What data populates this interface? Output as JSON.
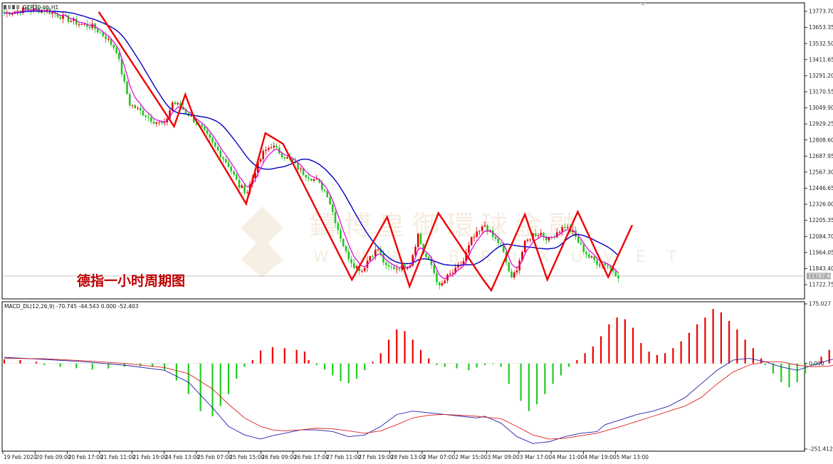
{
  "symbol_label": "GER30-bb,H1",
  "macd_header": "MACD_DL(12,26,9) -70.745 -44.543 0.000 -52.403",
  "annotation": "德指一小时周期图",
  "watermark": {
    "cn": "鑄博皇御環球金融",
    "en": "WWW.BRIXUVET"
  },
  "colors": {
    "bull": "#e00000",
    "bear": "#22c522",
    "ma_fast": "#e000e0",
    "ma_slow": "#0000c0",
    "zigzag": "#ee0000",
    "macd_dif": "#2222aa",
    "macd_dea": "#dd2222",
    "hist_pos": "#ee0000",
    "hist_neg": "#22cc22"
  },
  "chart_data": {
    "type": "candlestick",
    "price_axis": {
      "ticks": [
        "13773.70",
        "13653.35",
        "13532.50",
        "13411.65",
        "13291.20",
        "13170.55",
        "13049.90",
        "12929.25",
        "12808.60",
        "12687.95",
        "12567.30",
        "12446.65",
        "12326.00",
        "12205.35",
        "12084.70",
        "11964.05",
        "11843.40",
        "11722.75"
      ],
      "ylim": [
        11690,
        13800
      ],
      "current_price": "11787.60",
      "current_value": 11787.6
    },
    "macd_axis": {
      "ticks": [
        "175.027",
        "0.000",
        "-251.412"
      ],
      "ylim": [
        -251.412,
        175.027
      ]
    },
    "time_labels": [
      "19 Feb 2020",
      "20 Feb 09:00",
      "20 Feb 17:00",
      "21 Feb 11:00",
      "21 Feb 19:00",
      "24 Feb 13:00",
      "25 Feb 07:00",
      "25 Feb 15:00",
      "26 Feb 09:00",
      "26 Feb 17:00",
      "27 Feb 11:00",
      "27 Feb 19:00",
      "28 Feb 13:00",
      "2 Mar 07:00",
      "2 Mar 15:00",
      "3 Mar 09:00",
      "3 Mar 17:00",
      "4 Mar 11:00",
      "4 Mar 19:00",
      "5 Mar 13:00"
    ],
    "price_keypoints": [
      [
        0,
        13760
      ],
      [
        8,
        13790
      ],
      [
        16,
        13780
      ],
      [
        22,
        13730
      ],
      [
        28,
        13680
      ],
      [
        33,
        13660
      ],
      [
        38,
        13580
      ],
      [
        42,
        13480
      ],
      [
        45,
        13230
      ],
      [
        47,
        13080
      ],
      [
        52,
        13010
      ],
      [
        56,
        12950
      ],
      [
        60,
        12920
      ],
      [
        63,
        13090
      ],
      [
        66,
        13060
      ],
      [
        70,
        12980
      ],
      [
        74,
        12890
      ],
      [
        78,
        12780
      ],
      [
        84,
        12620
      ],
      [
        88,
        12460
      ],
      [
        91,
        12420
      ],
      [
        94,
        12580
      ],
      [
        97,
        12710
      ],
      [
        100,
        12770
      ],
      [
        104,
        12700
      ],
      [
        108,
        12640
      ],
      [
        112,
        12560
      ],
      [
        117,
        12500
      ],
      [
        121,
        12400
      ],
      [
        125,
        12140
      ],
      [
        128,
        11960
      ],
      [
        131,
        11870
      ],
      [
        134,
        11830
      ],
      [
        137,
        11940
      ],
      [
        140,
        11990
      ],
      [
        143,
        11850
      ],
      [
        147,
        11850
      ],
      [
        150,
        11860
      ],
      [
        152,
        11880
      ],
      [
        155,
        12100
      ],
      [
        157,
        11960
      ],
      [
        160,
        11870
      ],
      [
        163,
        11700
      ],
      [
        166,
        11780
      ],
      [
        169,
        11830
      ],
      [
        172,
        11900
      ],
      [
        175,
        12060
      ],
      [
        178,
        12120
      ],
      [
        180,
        12170
      ],
      [
        183,
        12080
      ],
      [
        186,
        12020
      ],
      [
        188,
        11890
      ],
      [
        190,
        11760
      ],
      [
        192,
        11850
      ],
      [
        195,
        12030
      ],
      [
        198,
        12100
      ],
      [
        201,
        12110
      ],
      [
        204,
        12060
      ],
      [
        207,
        12120
      ],
      [
        210,
        12160
      ],
      [
        213,
        12110
      ],
      [
        216,
        12010
      ],
      [
        219,
        11930
      ],
      [
        222,
        11890
      ],
      [
        225,
        11880
      ],
      [
        228,
        11830
      ],
      [
        230,
        11790
      ]
    ],
    "zigzag": [
      [
        59,
        13770
      ],
      [
        106,
        12910
      ],
      [
        113,
        13150
      ],
      [
        118,
        12990
      ],
      [
        151,
        12330
      ],
      [
        163,
        12860
      ],
      [
        174,
        12780
      ],
      [
        217,
        11760
      ],
      [
        239,
        12230
      ],
      [
        253,
        11710
      ],
      [
        271,
        12260
      ],
      [
        299,
        11760
      ],
      [
        304,
        11680
      ],
      [
        325,
        12250
      ],
      [
        339,
        11760
      ],
      [
        358,
        12270
      ],
      [
        377,
        11780
      ],
      [
        392,
        12170
      ]
    ],
    "macd": {
      "hist": [
        [
          0,
          12
        ],
        [
          4,
          10
        ],
        [
          8,
          5
        ],
        [
          10,
          -5
        ],
        [
          14,
          -10
        ],
        [
          18,
          -14
        ],
        [
          22,
          -18
        ],
        [
          26,
          -15
        ],
        [
          30,
          -10
        ],
        [
          34,
          -8
        ],
        [
          37,
          -10
        ],
        [
          40,
          -20
        ],
        [
          43,
          -50
        ],
        [
          46,
          -90
        ],
        [
          49,
          -140
        ],
        [
          52,
          -155
        ],
        [
          54,
          -125
        ],
        [
          56,
          -90
        ],
        [
          58,
          -45
        ],
        [
          60,
          -10
        ],
        [
          62,
          10
        ],
        [
          64,
          38
        ],
        [
          67,
          48
        ],
        [
          70,
          45
        ],
        [
          73,
          40
        ],
        [
          75,
          35
        ],
        [
          76,
          10
        ],
        [
          78,
          -5
        ],
        [
          80,
          -18
        ],
        [
          82,
          -35
        ],
        [
          84,
          -52
        ],
        [
          86,
          -58
        ],
        [
          88,
          -45
        ],
        [
          90,
          -20
        ],
        [
          92,
          5
        ],
        [
          94,
          30
        ],
        [
          96,
          70
        ],
        [
          98,
          100
        ],
        [
          100,
          95
        ],
        [
          102,
          70
        ],
        [
          104,
          40
        ],
        [
          106,
          15
        ],
        [
          108,
          -5
        ],
        [
          110,
          -10
        ],
        [
          113,
          -14
        ],
        [
          116,
          -20
        ],
        [
          118,
          -12
        ],
        [
          120,
          -5
        ],
        [
          122,
          -2
        ],
        [
          124,
          -10
        ],
        [
          126,
          -60
        ],
        [
          129,
          -110
        ],
        [
          131,
          -140
        ],
        [
          133,
          -120
        ],
        [
          135,
          -90
        ],
        [
          137,
          -60
        ],
        [
          139,
          -35
        ],
        [
          141,
          -10
        ],
        [
          143,
          10
        ],
        [
          145,
          30
        ],
        [
          147,
          50
        ],
        [
          149,
          80
        ],
        [
          151,
          115
        ],
        [
          153,
          135
        ],
        [
          155,
          130
        ],
        [
          157,
          105
        ],
        [
          159,
          60
        ],
        [
          161,
          35
        ],
        [
          163,
          25
        ],
        [
          165,
          30
        ],
        [
          167,
          45
        ],
        [
          169,
          65
        ],
        [
          171,
          90
        ],
        [
          173,
          115
        ],
        [
          175,
          135
        ],
        [
          177,
          160
        ],
        [
          179,
          150
        ],
        [
          181,
          125
        ],
        [
          183,
          100
        ],
        [
          185,
          70
        ],
        [
          187,
          45
        ],
        [
          189,
          15
        ],
        [
          190,
          -5
        ],
        [
          192,
          -30
        ],
        [
          194,
          -55
        ],
        [
          196,
          -70
        ],
        [
          198,
          -55
        ],
        [
          200,
          -30
        ],
        [
          202,
          -5
        ],
        [
          204,
          20
        ],
        [
          206,
          40
        ],
        [
          208,
          55
        ],
        [
          210,
          45
        ],
        [
          212,
          30
        ],
        [
          214,
          35
        ],
        [
          216,
          45
        ],
        [
          218,
          50
        ],
        [
          220,
          40
        ],
        [
          222,
          25
        ],
        [
          224,
          -5
        ],
        [
          226,
          -30
        ],
        [
          228,
          -60
        ],
        [
          230,
          -80
        ],
        [
          232,
          -90
        ],
        [
          234,
          -95
        ],
        [
          236,
          -90
        ],
        [
          238,
          -80
        ],
        [
          240,
          -75
        ],
        [
          242,
          -55
        ]
      ],
      "dif": [
        [
          0,
          18
        ],
        [
          10,
          12
        ],
        [
          20,
          5
        ],
        [
          30,
          -5
        ],
        [
          40,
          -20
        ],
        [
          46,
          -55
        ],
        [
          52,
          -130
        ],
        [
          56,
          -185
        ],
        [
          60,
          -210
        ],
        [
          64,
          -222
        ],
        [
          67,
          -212
        ],
        [
          70,
          -205
        ],
        [
          74,
          -195
        ],
        [
          78,
          -195
        ],
        [
          82,
          -200
        ],
        [
          86,
          -215
        ],
        [
          90,
          -210
        ],
        [
          94,
          -185
        ],
        [
          98,
          -150
        ],
        [
          102,
          -140
        ],
        [
          106,
          -145
        ],
        [
          110,
          -150
        ],
        [
          114,
          -155
        ],
        [
          118,
          -160
        ],
        [
          120,
          -155
        ],
        [
          124,
          -175
        ],
        [
          128,
          -215
        ],
        [
          132,
          -235
        ],
        [
          136,
          -230
        ],
        [
          140,
          -215
        ],
        [
          144,
          -205
        ],
        [
          148,
          -200
        ],
        [
          150,
          -180
        ],
        [
          154,
          -165
        ],
        [
          158,
          -150
        ],
        [
          162,
          -140
        ],
        [
          166,
          -125
        ],
        [
          170,
          -100
        ],
        [
          174,
          -60
        ],
        [
          178,
          -20
        ],
        [
          182,
          10
        ],
        [
          186,
          15
        ],
        [
          190,
          5
        ],
        [
          194,
          -10
        ],
        [
          198,
          -20
        ],
        [
          202,
          -5
        ],
        [
          206,
          10
        ],
        [
          210,
          20
        ],
        [
          214,
          25
        ],
        [
          216,
          40
        ],
        [
          218,
          50
        ],
        [
          222,
          40
        ],
        [
          226,
          10
        ],
        [
          230,
          -30
        ],
        [
          234,
          -55
        ],
        [
          238,
          -65
        ],
        [
          242,
          -75
        ]
      ],
      "dea": [
        [
          0,
          15
        ],
        [
          10,
          14
        ],
        [
          20,
          8
        ],
        [
          30,
          0
        ],
        [
          40,
          -12
        ],
        [
          46,
          -30
        ],
        [
          52,
          -75
        ],
        [
          56,
          -120
        ],
        [
          60,
          -160
        ],
        [
          64,
          -185
        ],
        [
          67,
          -195
        ],
        [
          70,
          -198
        ],
        [
          74,
          -195
        ],
        [
          78,
          -190
        ],
        [
          82,
          -192
        ],
        [
          86,
          -198
        ],
        [
          90,
          -205
        ],
        [
          94,
          -198
        ],
        [
          98,
          -180
        ],
        [
          102,
          -160
        ],
        [
          106,
          -152
        ],
        [
          110,
          -150
        ],
        [
          114,
          -152
        ],
        [
          118,
          -155
        ],
        [
          120,
          -158
        ],
        [
          124,
          -162
        ],
        [
          128,
          -185
        ],
        [
          132,
          -210
        ],
        [
          136,
          -222
        ],
        [
          140,
          -220
        ],
        [
          144,
          -212
        ],
        [
          148,
          -205
        ],
        [
          150,
          -198
        ],
        [
          154,
          -185
        ],
        [
          158,
          -170
        ],
        [
          162,
          -155
        ],
        [
          166,
          -140
        ],
        [
          170,
          -125
        ],
        [
          174,
          -100
        ],
        [
          178,
          -60
        ],
        [
          182,
          -25
        ],
        [
          186,
          -5
        ],
        [
          190,
          5
        ],
        [
          194,
          5
        ],
        [
          198,
          -5
        ],
        [
          202,
          -10
        ],
        [
          206,
          -8
        ],
        [
          210,
          5
        ],
        [
          214,
          15
        ],
        [
          216,
          20
        ],
        [
          218,
          25
        ],
        [
          222,
          30
        ],
        [
          226,
          25
        ],
        [
          230,
          10
        ],
        [
          234,
          -15
        ],
        [
          238,
          -35
        ],
        [
          242,
          -50
        ]
      ]
    }
  }
}
